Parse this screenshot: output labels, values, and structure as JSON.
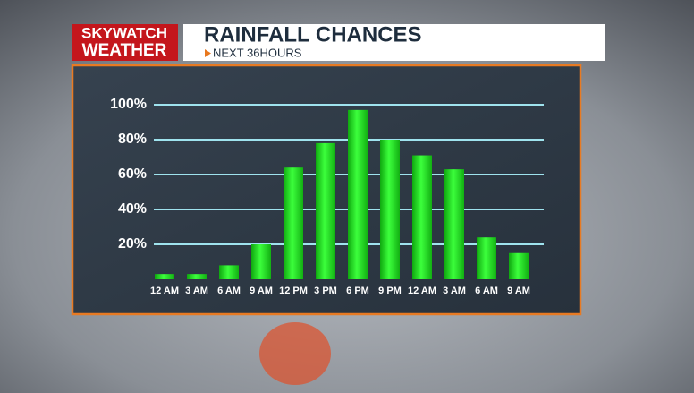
{
  "brand": {
    "line1": "SKYWATCH",
    "line2": "WEATHER"
  },
  "chart_data": {
    "type": "bar",
    "title": "RAINFALL CHANCES",
    "subtitle": "NEXT 36HOURS",
    "categories": [
      "12 AM",
      "3 AM",
      "6 AM",
      "9 AM",
      "12 PM",
      "3 PM",
      "6 PM",
      "9 PM",
      "12 AM",
      "3 AM",
      "6 AM",
      "9 AM"
    ],
    "values": [
      3,
      3,
      8,
      20,
      64,
      78,
      97,
      80,
      71,
      63,
      24,
      15
    ],
    "color": "#22e022",
    "ylim": [
      0,
      100
    ],
    "yticks": [
      {
        "value": 20,
        "label": "20%"
      },
      {
        "value": 40,
        "label": "40%"
      },
      {
        "value": 60,
        "label": "60%"
      },
      {
        "value": 80,
        "label": "80%"
      },
      {
        "value": 100,
        "label": "100%"
      }
    ],
    "grid": true
  }
}
